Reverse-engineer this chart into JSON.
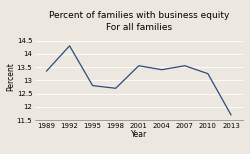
{
  "title": "Percent of families with business equity",
  "subtitle": "For all families",
  "xlabel": "Year",
  "ylabel": "Percent",
  "x": [
    1989,
    1992,
    1995,
    1998,
    2001,
    2004,
    2007,
    2010,
    2013
  ],
  "y": [
    13.35,
    14.3,
    12.8,
    12.7,
    13.55,
    13.4,
    13.55,
    13.25,
    11.7
  ],
  "line_color": "#2c4a7c",
  "bg_color": "#ede8df",
  "ylim": [
    11.5,
    14.75
  ],
  "yticks": [
    11.5,
    12.0,
    12.5,
    13.0,
    13.5,
    14.0,
    14.5
  ],
  "ytick_labels": [
    "11.5",
    "12",
    "12.5",
    "13",
    "13.5",
    "14",
    "14.5"
  ],
  "title_fontsize": 6.5,
  "subtitle_fontsize": 6.0,
  "label_fontsize": 5.5,
  "tick_fontsize": 5.0
}
